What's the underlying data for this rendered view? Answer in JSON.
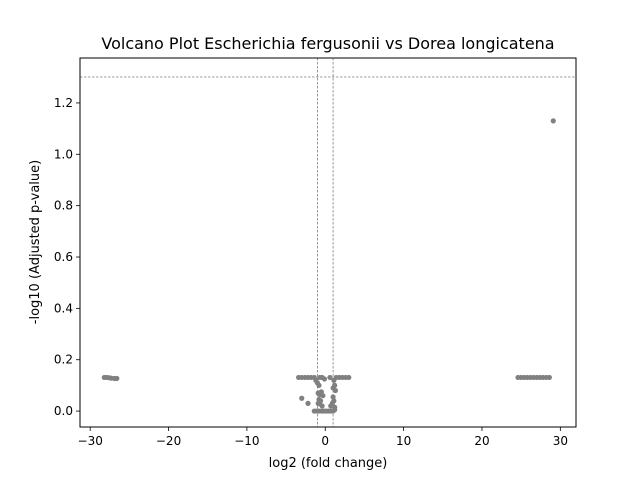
{
  "chart_data": {
    "type": "scatter",
    "title": "Volcano Plot Escherichia fergusonii vs Dorea longicatena",
    "xlabel": "log2 (fold change)",
    "ylabel": "-log10 (Adjusted p-value)",
    "xlim": [
      -31.3,
      32.0
    ],
    "ylim": [
      -0.062,
      1.375
    ],
    "xticks": [
      -30,
      -20,
      -10,
      0,
      10,
      20,
      30
    ],
    "xtick_labels": [
      "−30",
      "−20",
      "−10",
      "0",
      "10",
      "20",
      "30"
    ],
    "yticks": [
      0.0,
      0.2,
      0.4,
      0.6,
      0.8,
      1.0,
      1.2
    ],
    "ytick_labels": [
      "0.0",
      "0.2",
      "0.4",
      "0.6",
      "0.8",
      "1.0",
      "1.2"
    ],
    "grid": false,
    "reference_lines": {
      "vertical": [
        -1,
        1
      ],
      "horizontal": [
        1.301
      ]
    },
    "marker_color": "#808080",
    "threshold_line_color": "#808080",
    "points": [
      {
        "x": 29.1,
        "y": 1.13
      },
      {
        "x": -28.2,
        "y": 0.131
      },
      {
        "x": -27.9,
        "y": 0.131
      },
      {
        "x": -27.6,
        "y": 0.13
      },
      {
        "x": -27.3,
        "y": 0.128
      },
      {
        "x": -26.9,
        "y": 0.127
      },
      {
        "x": -26.6,
        "y": 0.127
      },
      {
        "x": 24.6,
        "y": 0.131
      },
      {
        "x": 25.0,
        "y": 0.131
      },
      {
        "x": 25.4,
        "y": 0.131
      },
      {
        "x": 25.8,
        "y": 0.131
      },
      {
        "x": 26.2,
        "y": 0.131
      },
      {
        "x": 26.6,
        "y": 0.131
      },
      {
        "x": 27.0,
        "y": 0.131
      },
      {
        "x": 27.4,
        "y": 0.131
      },
      {
        "x": 27.8,
        "y": 0.131
      },
      {
        "x": 28.2,
        "y": 0.131
      },
      {
        "x": 28.6,
        "y": 0.131
      },
      {
        "x": -3.4,
        "y": 0.131
      },
      {
        "x": -3.0,
        "y": 0.131
      },
      {
        "x": -2.6,
        "y": 0.131
      },
      {
        "x": -2.2,
        "y": 0.131
      },
      {
        "x": -1.8,
        "y": 0.131
      },
      {
        "x": -1.4,
        "y": 0.131
      },
      {
        "x": -1.2,
        "y": 0.12
      },
      {
        "x": -1.0,
        "y": 0.11
      },
      {
        "x": -0.8,
        "y": 0.1
      },
      {
        "x": -0.7,
        "y": 0.131
      },
      {
        "x": -0.4,
        "y": 0.131
      },
      {
        "x": -0.1,
        "y": 0.125
      },
      {
        "x": 1.4,
        "y": 0.131
      },
      {
        "x": 1.8,
        "y": 0.131
      },
      {
        "x": 2.2,
        "y": 0.131
      },
      {
        "x": 2.6,
        "y": 0.131
      },
      {
        "x": 3.0,
        "y": 0.131
      },
      {
        "x": 1.1,
        "y": 0.12
      },
      {
        "x": 1.2,
        "y": 0.1
      },
      {
        "x": 1.0,
        "y": 0.09
      },
      {
        "x": 1.3,
        "y": 0.08
      },
      {
        "x": 0.6,
        "y": 0.131
      },
      {
        "x": -0.9,
        "y": 0.07
      },
      {
        "x": -0.7,
        "y": 0.065
      },
      {
        "x": -0.5,
        "y": 0.075
      },
      {
        "x": -0.8,
        "y": 0.045
      },
      {
        "x": -0.6,
        "y": 0.04
      },
      {
        "x": -0.3,
        "y": 0.06
      },
      {
        "x": -0.9,
        "y": 0.03
      },
      {
        "x": -0.7,
        "y": 0.028
      },
      {
        "x": -0.4,
        "y": 0.02
      },
      {
        "x": -3.0,
        "y": 0.05
      },
      {
        "x": -2.2,
        "y": 0.03
      },
      {
        "x": 0.7,
        "y": 0.02
      },
      {
        "x": 0.9,
        "y": 0.03
      },
      {
        "x": 1.1,
        "y": 0.04
      },
      {
        "x": 1.0,
        "y": 0.055
      },
      {
        "x": 1.2,
        "y": 0.015
      },
      {
        "x": -1.4,
        "y": 0.0
      },
      {
        "x": -1.1,
        "y": 0.0
      },
      {
        "x": -0.8,
        "y": 0.0
      },
      {
        "x": -0.5,
        "y": 0.0
      },
      {
        "x": -0.2,
        "y": 0.0
      },
      {
        "x": 0.1,
        "y": 0.0
      },
      {
        "x": 0.4,
        "y": 0.0
      },
      {
        "x": 0.7,
        "y": 0.0
      },
      {
        "x": 1.0,
        "y": 0.0
      },
      {
        "x": 1.2,
        "y": 0.005
      }
    ]
  }
}
